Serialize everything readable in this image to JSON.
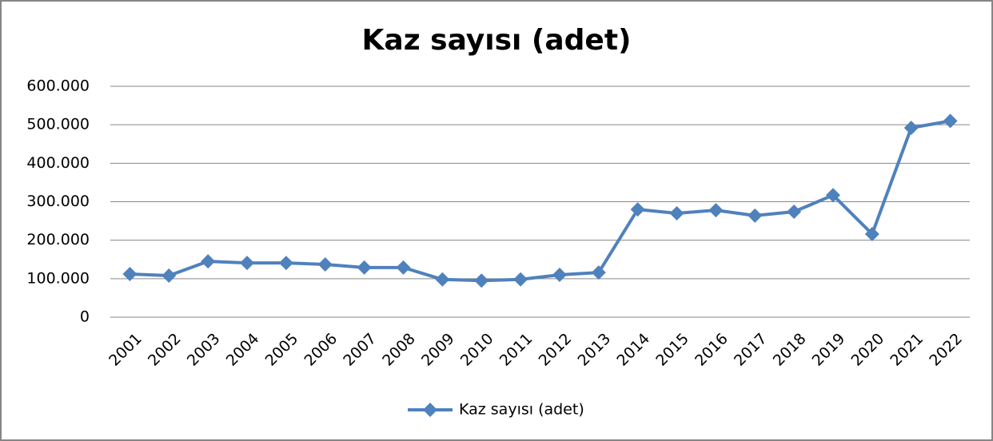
{
  "chart_data": {
    "type": "line",
    "title": "Kaz sayısı (adet)",
    "categories": [
      "2001",
      "2002",
      "2003",
      "2004",
      "2005",
      "2006",
      "2007",
      "2008",
      "2009",
      "2010",
      "2011",
      "2012",
      "2013",
      "2014",
      "2015",
      "2016",
      "2017",
      "2018",
      "2019",
      "2020",
      "2021",
      "2022"
    ],
    "series": [
      {
        "name": "Kaz sayısı (adet)",
        "color": "#4f81bd",
        "values": [
          112000,
          108000,
          145000,
          141000,
          141000,
          137000,
          129000,
          129000,
          98000,
          95000,
          98000,
          110000,
          116000,
          280000,
          270000,
          278000,
          264000,
          274000,
          317000,
          216000,
          492000,
          510000
        ]
      }
    ],
    "ylim": [
      0,
      600000
    ],
    "yticks": [
      0,
      {
        "value": 100000,
        "label": "100.000"
      },
      {
        "value": 200000,
        "label": "200.000"
      },
      {
        "value": 300000,
        "label": "300.000"
      },
      {
        "value": 400000,
        "label": "400.000"
      },
      {
        "value": 500000,
        "label": "500.000"
      },
      {
        "value": 600000,
        "label": "600.000"
      }
    ],
    "grid": true,
    "legend": "bottom"
  }
}
